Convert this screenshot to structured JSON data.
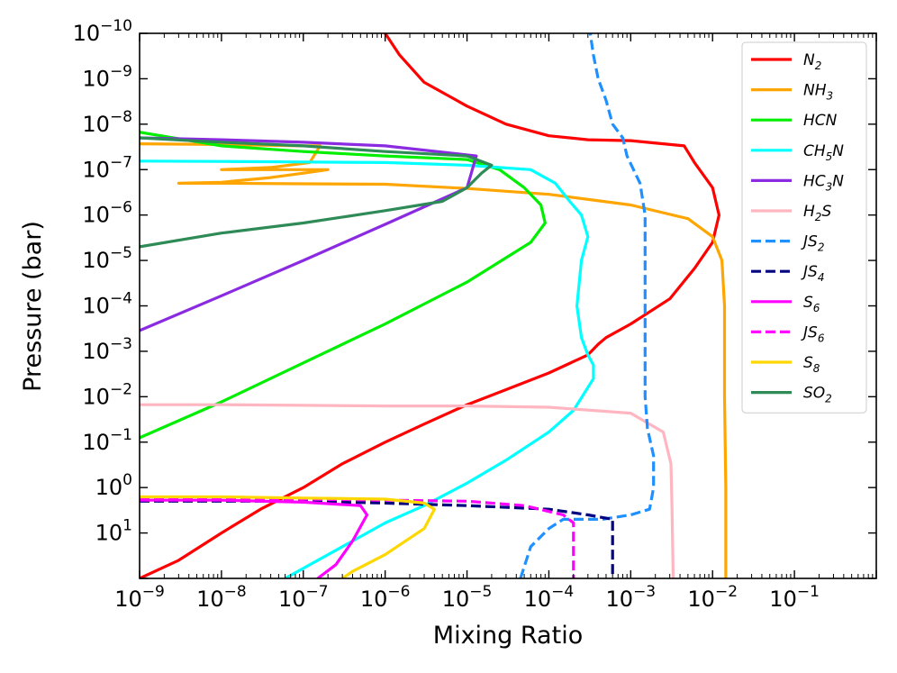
{
  "chart_data": {
    "type": "line",
    "xscale": "log",
    "yscale": "log",
    "xlabel": "Mixing Ratio",
    "ylabel": "Pressure (bar)",
    "xlim": [
      1e-09,
      1
    ],
    "ylim": [
      1e-10,
      100
    ],
    "y_inverted": true,
    "x_tick_labels": [
      {
        "base": "10",
        "exp": "−9"
      },
      {
        "base": "10",
        "exp": "−8"
      },
      {
        "base": "10",
        "exp": "−7"
      },
      {
        "base": "10",
        "exp": "−6"
      },
      {
        "base": "10",
        "exp": "−5"
      },
      {
        "base": "10",
        "exp": "−4"
      },
      {
        "base": "10",
        "exp": "−3"
      },
      {
        "base": "10",
        "exp": "−2"
      },
      {
        "base": "10",
        "exp": "−1"
      }
    ],
    "y_tick_labels": [
      {
        "base": "10",
        "exp": "−10"
      },
      {
        "base": "10",
        "exp": "−9"
      },
      {
        "base": "10",
        "exp": "−8"
      },
      {
        "base": "10",
        "exp": "−7"
      },
      {
        "base": "10",
        "exp": "−6"
      },
      {
        "base": "10",
        "exp": "−5"
      },
      {
        "base": "10",
        "exp": "−4"
      },
      {
        "base": "10",
        "exp": "−3"
      },
      {
        "base": "10",
        "exp": "−2"
      },
      {
        "base": "10",
        "exp": "−1"
      },
      {
        "base": "10",
        "exp": "0"
      },
      {
        "base": "10",
        "exp": "1"
      }
    ],
    "legend_position": "top-right",
    "series": [
      {
        "name": "N2",
        "label_main": "N",
        "label_sub": "2",
        "color": "#ff0000",
        "dash": "solid",
        "points": [
          [
            1e-09,
            100
          ],
          [
            3e-09,
            40
          ],
          [
            1e-08,
            10
          ],
          [
            3e-08,
            3
          ],
          [
            1e-07,
            1
          ],
          [
            3e-07,
            0.3
          ],
          [
            1e-06,
            0.1
          ],
          [
            3e-06,
            0.04
          ],
          [
            1e-05,
            0.015
          ],
          [
            3e-05,
            0.007
          ],
          [
            0.0001,
            0.003
          ],
          [
            0.0003,
            0.0012
          ],
          [
            0.0004,
            0.0007
          ],
          [
            0.0005,
            0.0005
          ],
          [
            0.001,
            0.00025
          ],
          [
            0.003,
            7e-05
          ],
          [
            0.006,
            1.5e-05
          ],
          [
            0.01,
            4e-06
          ],
          [
            0.012,
            1e-06
          ],
          [
            0.01,
            2.5e-07
          ],
          [
            0.006,
            7e-08
          ],
          [
            0.0045,
            3e-08
          ],
          [
            0.001,
            2.3e-08
          ],
          [
            0.0003,
            2.2e-08
          ],
          [
            0.0001,
            1.8e-08
          ],
          [
            3e-05,
            1e-08
          ],
          [
            1e-05,
            4e-09
          ],
          [
            3e-06,
            1.2e-09
          ],
          [
            1.5e-06,
            3e-10
          ],
          [
            1e-06,
            1e-10
          ]
        ]
      },
      {
        "name": "NH3",
        "label_main": "NH",
        "label_sub": "3",
        "color": "#ffa500",
        "dash": "solid",
        "points": [
          [
            1e-09,
            2.7e-08
          ],
          [
            1e-08,
            2.8e-08
          ],
          [
            1e-07,
            3e-08
          ],
          [
            1.6e-07,
            3e-08
          ],
          [
            1.2e-07,
            7e-08
          ],
          [
            4e-08,
            9e-08
          ],
          [
            1e-08,
            1e-07
          ],
          [
            2e-07,
            1e-07
          ],
          [
            1e-07,
            1.2e-07
          ],
          [
            4e-08,
            1.5e-07
          ],
          [
            1e-08,
            1.9e-07
          ],
          [
            3e-09,
            2e-07
          ],
          [
            1e-08,
            2e-07
          ],
          [
            1e-07,
            2.05e-07
          ],
          [
            1e-06,
            2.1e-07
          ],
          [
            1e-05,
            2.6e-07
          ],
          [
            0.0001,
            3.5e-07
          ],
          [
            0.001,
            6e-07
          ],
          [
            0.005,
            1.2e-06
          ],
          [
            0.01,
            3e-06
          ],
          [
            0.013,
            1e-05
          ],
          [
            0.014,
            0.0001
          ],
          [
            0.014,
            0.01
          ],
          [
            0.0145,
            1
          ],
          [
            0.0145,
            100
          ]
        ]
      },
      {
        "name": "HCN",
        "label_main": "HCN",
        "label_sub": "",
        "color": "#00ee00",
        "dash": "solid",
        "points": [
          [
            1e-09,
            0.08
          ],
          [
            1e-08,
            0.013
          ],
          [
            1e-07,
            0.0018
          ],
          [
            1e-06,
            0.00025
          ],
          [
            1e-05,
            3e-05
          ],
          [
            6e-05,
            4e-06
          ],
          [
            9e-05,
            1.5e-06
          ],
          [
            8e-05,
            6e-07
          ],
          [
            5e-05,
            2.5e-07
          ],
          [
            2.5e-05,
            1e-07
          ],
          [
            1e-05,
            6e-08
          ],
          [
            1e-06,
            5e-08
          ],
          [
            1e-07,
            4e-08
          ],
          [
            1e-08,
            3e-08
          ],
          [
            1e-09,
            1.5e-08
          ]
        ]
      },
      {
        "name": "CH5N",
        "label_main": "CH",
        "label_sub": "5",
        "label_main2": "N",
        "color": "#00ffff",
        "dash": "solid",
        "points": [
          [
            6e-08,
            100
          ],
          [
            3e-07,
            20
          ],
          [
            1e-06,
            6
          ],
          [
            3e-06,
            2.5
          ],
          [
            1e-05,
            0.8
          ],
          [
            3e-05,
            0.25
          ],
          [
            0.0001,
            0.06
          ],
          [
            0.0002,
            0.02
          ],
          [
            0.00035,
            0.004
          ],
          [
            0.00035,
            0.002
          ],
          [
            0.0003,
            0.0012
          ],
          [
            0.00025,
            0.0005
          ],
          [
            0.00022,
            0.0001
          ],
          [
            0.00025,
            1e-05
          ],
          [
            0.0003,
            3e-06
          ],
          [
            0.00025,
            1e-06
          ],
          [
            0.00018,
            5e-07
          ],
          [
            0.00012,
            2e-07
          ],
          [
            6e-05,
            1e-07
          ],
          [
            1e-05,
            8e-08
          ],
          [
            1e-06,
            7e-08
          ],
          [
            1e-07,
            6.8e-08
          ],
          [
            1e-08,
            6.6e-08
          ],
          [
            1e-09,
            6.5e-08
          ]
        ]
      },
      {
        "name": "HC3N",
        "label_main": "HC",
        "label_sub": "3",
        "label_main2": "N",
        "color": "#8a2be2",
        "dash": "solid",
        "points": [
          [
            1e-09,
            0.00035
          ],
          [
            1e-08,
            6e-05
          ],
          [
            1e-07,
            1e-05
          ],
          [
            1e-06,
            1.6e-06
          ],
          [
            1e-05,
            2.5e-07
          ],
          [
            1.3e-05,
            5e-08
          ],
          [
            1e-06,
            3e-08
          ],
          [
            1e-07,
            2.5e-08
          ],
          [
            1e-08,
            2.2e-08
          ],
          [
            1e-09,
            2e-08
          ]
        ]
      },
      {
        "name": "H2S",
        "label_main": "H",
        "label_sub": "2",
        "label_main2": "S",
        "color": "#ffb6c1",
        "dash": "solid",
        "points": [
          [
            1e-09,
            0.015
          ],
          [
            1e-08,
            0.015
          ],
          [
            1e-07,
            0.0155
          ],
          [
            1e-06,
            0.016
          ],
          [
            1e-05,
            0.016
          ],
          [
            0.0001,
            0.017
          ],
          [
            0.001,
            0.023
          ],
          [
            0.0025,
            0.06
          ],
          [
            0.0031,
            0.3
          ],
          [
            0.0032,
            3
          ],
          [
            0.0033,
            100
          ]
        ]
      },
      {
        "name": "JS2",
        "label_main": "JS",
        "label_sub": "2",
        "color": "#1e90ff",
        "dash": "dashed",
        "points": [
          [
            4.5e-05,
            100
          ],
          [
            6e-05,
            20
          ],
          [
            0.0001,
            8
          ],
          [
            0.00015,
            5
          ],
          [
            0.0003,
            5
          ],
          [
            0.00045,
            5
          ],
          [
            0.001,
            4
          ],
          [
            0.0017,
            3
          ],
          [
            0.0019,
            1
          ],
          [
            0.0019,
            0.2
          ],
          [
            0.0016,
            0.05
          ],
          [
            0.0015,
            0.01
          ],
          [
            0.0015,
            0.001
          ],
          [
            0.0015,
            0.0001
          ],
          [
            0.0015,
            1e-05
          ],
          [
            0.0015,
            1e-06
          ],
          [
            0.0013,
            2e-07
          ],
          [
            0.0009,
            5e-08
          ],
          [
            0.0008,
            2e-08
          ],
          [
            0.0006,
            1e-08
          ],
          [
            0.0005,
            3e-09
          ],
          [
            0.0004,
            1e-09
          ],
          [
            0.00035,
            3e-10
          ],
          [
            0.00032,
            1e-10
          ]
        ]
      },
      {
        "name": "JS4",
        "label_main": "JS",
        "label_sub": "4",
        "color": "#000080",
        "dash": "dashed",
        "points": [
          [
            1e-09,
            2
          ],
          [
            1e-08,
            2
          ],
          [
            1e-07,
            2
          ],
          [
            1e-06,
            2.2
          ],
          [
            1e-05,
            2.5
          ],
          [
            0.0001,
            3
          ],
          [
            0.0003,
            4
          ],
          [
            0.0006,
            5
          ],
          [
            0.0006,
            20
          ],
          [
            0.0006,
            100
          ]
        ]
      },
      {
        "name": "S6",
        "label_main": "S",
        "label_sub": "6",
        "color": "#ff00ff",
        "dash": "solid",
        "points": [
          [
            1e-09,
            1.9
          ],
          [
            1e-08,
            1.9
          ],
          [
            1e-07,
            2.1
          ],
          [
            5e-07,
            2.5
          ],
          [
            6e-07,
            4
          ],
          [
            4e-07,
            15
          ],
          [
            2.5e-07,
            50
          ],
          [
            1.5e-07,
            100
          ]
        ]
      },
      {
        "name": "JS6",
        "label_main": "JS",
        "label_sub": "6",
        "color": "#ff00ff",
        "dash": "dashed",
        "points": [
          [
            1e-09,
            1.8
          ],
          [
            1e-08,
            1.8
          ],
          [
            1e-07,
            1.8
          ],
          [
            1e-06,
            1.9
          ],
          [
            1e-05,
            2
          ],
          [
            5e-05,
            2.5
          ],
          [
            0.00015,
            4
          ],
          [
            0.0002,
            6
          ],
          [
            0.0002,
            20
          ],
          [
            0.0002,
            100
          ]
        ]
      },
      {
        "name": "S8",
        "label_main": "S",
        "label_sub": "8",
        "color": "#ffd700",
        "dash": "solid",
        "points": [
          [
            1e-09,
            1.6
          ],
          [
            1e-08,
            1.6
          ],
          [
            1e-07,
            1.7
          ],
          [
            1e-06,
            1.8
          ],
          [
            3e-06,
            2.2
          ],
          [
            4e-06,
            3
          ],
          [
            3e-06,
            8
          ],
          [
            1e-06,
            30
          ],
          [
            4e-07,
            70
          ],
          [
            3e-07,
            100
          ]
        ]
      },
      {
        "name": "SO2",
        "label_main": "SO",
        "label_sub": "2",
        "color": "#2e8b57",
        "dash": "solid",
        "points": [
          [
            1e-09,
            5e-06
          ],
          [
            1e-08,
            2.5e-06
          ],
          [
            1e-07,
            1.5e-06
          ],
          [
            1e-06,
            8e-07
          ],
          [
            5e-06,
            5e-07
          ],
          [
            1e-05,
            2.5e-07
          ],
          [
            1.5e-05,
            1.2e-07
          ],
          [
            2e-05,
            8e-08
          ],
          [
            1e-05,
            5e-08
          ],
          [
            1e-06,
            4e-08
          ],
          [
            1e-07,
            3e-08
          ],
          [
            1e-08,
            2.5e-08
          ],
          [
            1e-09,
            2e-08
          ]
        ]
      }
    ]
  }
}
